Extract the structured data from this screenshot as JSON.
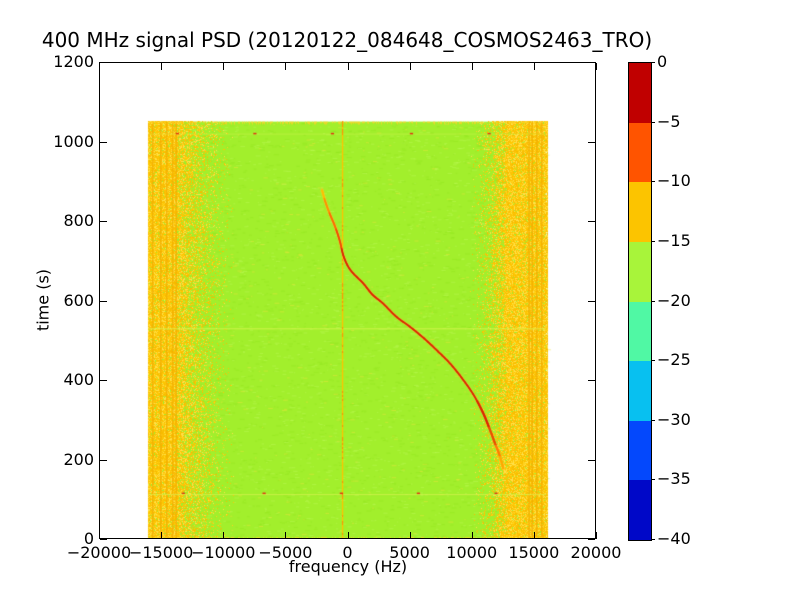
{
  "chart_data": {
    "type": "heatmap",
    "title": "400 MHz signal PSD (20120122_084648_COSMOS2463_TRO)",
    "xlabel": "frequency (Hz)",
    "ylabel": "time (s)",
    "xlim": [
      -20000,
      20000
    ],
    "ylim": [
      0,
      1200
    ],
    "grid": false,
    "xticks": [
      -20000,
      -15000,
      -10000,
      -5000,
      0,
      5000,
      10000,
      15000,
      20000
    ],
    "xtick_labels": [
      "−20000",
      "−15000",
      "−10000",
      "−5000",
      "0",
      "5000",
      "10000",
      "15000",
      "20000"
    ],
    "yticks": [
      0,
      200,
      400,
      600,
      800,
      1000,
      1200
    ],
    "ytick_labels": [
      "0",
      "200",
      "400",
      "600",
      "800",
      "1000",
      "1200"
    ],
    "colorbar": {
      "ticks": [
        0,
        -5,
        -10,
        -15,
        -20,
        -25,
        -30,
        -35,
        -40
      ],
      "tick_labels": [
        "0",
        "−5",
        "−10",
        "−15",
        "−20",
        "−25",
        "−30",
        "−35",
        "−40"
      ],
      "segment_colors_top_to_bottom": [
        "#c00000",
        "#ff5400",
        "#fcc400",
        "#a8f43a",
        "#50f8a4",
        "#08c0f0",
        "#0448fc",
        "#0008c8"
      ],
      "position": "right"
    },
    "data_extent": {
      "freq_hz": [
        -16000,
        16000
      ],
      "time_s": [
        0,
        1050
      ]
    },
    "background": {
      "color": "#a2ef2c",
      "level_db": -18
    },
    "noise_bands": [
      {
        "side": "left",
        "solid_range_hz": [
          -16000,
          -13850
        ],
        "fade_range_hz": [
          -13850,
          -9000
        ],
        "color": "#ffc800",
        "streaks_hz": [
          -15735,
          -15090,
          -14610,
          -14130,
          -13850
        ],
        "streak_color": "#f2ae00"
      },
      {
        "side": "right",
        "solid_range_hz": [
          12800,
          16000
        ],
        "fade_range_hz": [
          9800,
          12800
        ],
        "color": "#ffc800",
        "streaks_hz": [
          14550,
          14800,
          15170,
          15570
        ],
        "streak_color": "#f2ae00"
      }
    ],
    "carrier_line": {
      "freq_hz": -450,
      "color": "#ffc400",
      "alt_color": "#ff9800"
    },
    "horizontal_lines": [
      {
        "time_s": 530,
        "color": "#d8f451",
        "alpha": 0.85
      },
      {
        "time_s": 113,
        "color": "#d8f451",
        "alpha": 0.7
      },
      {
        "time_s": 1020,
        "color": "#d8f451",
        "alpha": 0.45
      }
    ],
    "speck_rows": [
      {
        "time_s": 1020,
        "freqs_hz": [
          -13700,
          -7460,
          -1220,
          5140,
          11390
        ],
        "color": "#e03414"
      },
      {
        "time_s": 115,
        "freqs_hz": [
          -13220,
          -6720,
          -500,
          5700,
          11950
        ],
        "color": "#e03414"
      }
    ],
    "doppler_curve": {
      "description": "satellite Doppler S-curve",
      "points_time_freq": [
        [
          878,
          -2050
        ],
        [
          850,
          -1800
        ],
        [
          820,
          -1450
        ],
        [
          786,
          -1000
        ],
        [
          750,
          -620
        ],
        [
          710,
          -300
        ],
        [
          676,
          250
        ],
        [
          643,
          1270
        ],
        [
          615,
          2000
        ],
        [
          592,
          2880
        ],
        [
          560,
          3900
        ],
        [
          534,
          5030
        ],
        [
          505,
          6150
        ],
        [
          475,
          7180
        ],
        [
          440,
          8300
        ],
        [
          400,
          9320
        ],
        [
          360,
          10200
        ],
        [
          316,
          10930
        ],
        [
          280,
          11400
        ],
        [
          241,
          11870
        ],
        [
          210,
          12250
        ],
        [
          178,
          12540
        ]
      ],
      "core_color": "#d82600",
      "halo_color": "#ffc83c",
      "color_stops_by_time": [
        {
          "t_min": 856,
          "color": "#ffc000"
        },
        {
          "t_min": 820,
          "color": "#ff9400"
        },
        {
          "t_min": 780,
          "color": "#ff6c00"
        },
        {
          "t_min": 730,
          "color": "#f44a00"
        },
        {
          "t_min": 280,
          "color": "#dc2600"
        },
        {
          "t_min": 235,
          "color": "#e84e00"
        },
        {
          "t_min": 205,
          "color": "#ff7c00"
        },
        {
          "t_min": 0,
          "color": "#ffa800"
        }
      ]
    }
  }
}
